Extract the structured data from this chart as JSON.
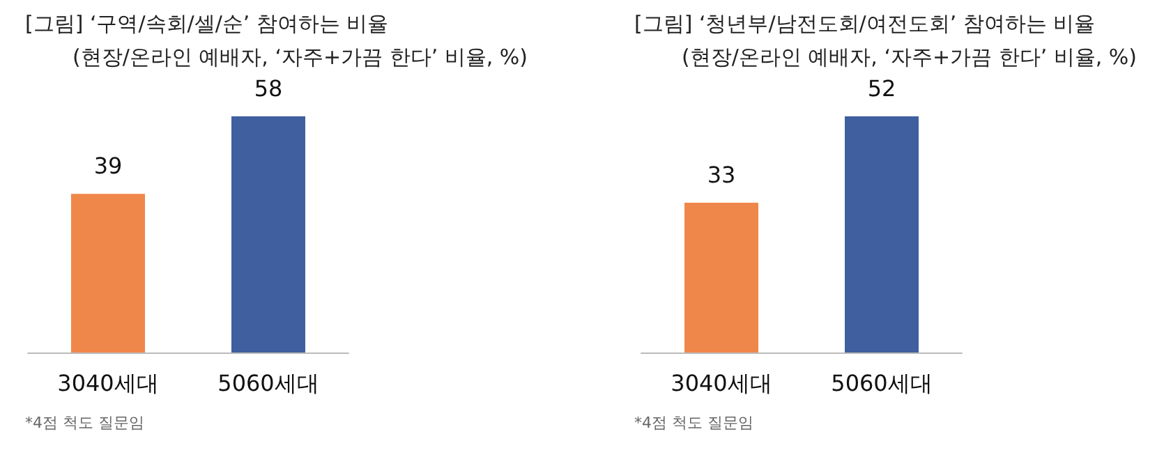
{
  "chart_data": [
    {
      "type": "bar",
      "title": "[그림] ‘구역/속회/셀/순’ 참여하는 비율",
      "subtitle": "(현장/온라인 예배자, ‘자주+가끔 한다’ 비율, %)",
      "categories": [
        "3040세대",
        "5060세대"
      ],
      "values": [
        39,
        58
      ],
      "colors": [
        "#f0874a",
        "#3f5f9e"
      ],
      "data_labels": true,
      "annotations": [
        "*4점 척도 질문임"
      ]
    },
    {
      "type": "bar",
      "title": "[그림] ‘청년부/남전도회/여전도회’ 참여하는 비율",
      "subtitle": "(현장/온라인 예배자, ‘자주+가끔 한다’ 비율, %)",
      "categories": [
        "3040세대",
        "5060세대"
      ],
      "values": [
        33,
        52
      ],
      "colors": [
        "#f0874a",
        "#3f5f9e"
      ],
      "data_labels": true,
      "annotations": [
        "*4점 척도 질문임"
      ]
    }
  ]
}
